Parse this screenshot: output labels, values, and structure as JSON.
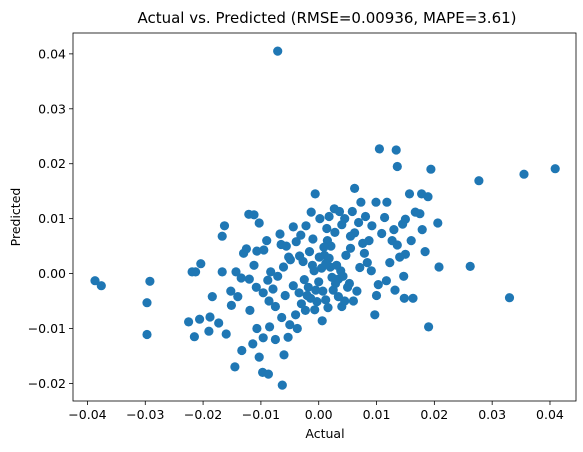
{
  "chart_data": {
    "type": "scatter",
    "title": "Actual vs. Predicted (RMSE=0.00936, MAPE=3.61)",
    "xlabel": "Actual",
    "ylabel": "Predicted",
    "xlim": [
      -0.0425,
      0.0445
    ],
    "ylim": [
      -0.0232,
      0.0438
    ],
    "xticks": [
      -0.04,
      -0.03,
      -0.02,
      -0.01,
      0.0,
      0.01,
      0.02,
      0.03,
      0.04
    ],
    "yticks": [
      -0.02,
      -0.01,
      0.0,
      0.01,
      0.02,
      0.03,
      0.04
    ],
    "xtick_labels": [
      "−0.04",
      "−0.03",
      "−0.02",
      "−0.01",
      "0.00",
      "0.01",
      "0.02",
      "0.03",
      "0.04"
    ],
    "ytick_labels": [
      "−0.02",
      "−0.01",
      "0.00",
      "0.01",
      "0.02",
      "0.03",
      "0.04"
    ],
    "grid": false,
    "marker_color": "#1f77b4",
    "points": [
      [
        -0.0071,
        0.0405
      ],
      [
        0.0409,
        0.0191
      ],
      [
        0.0355,
        0.0181
      ],
      [
        0.0277,
        0.0169
      ],
      [
        0.033,
        -0.0044
      ],
      [
        0.0262,
        0.0013
      ],
      [
        0.0194,
        0.019
      ],
      [
        0.0105,
        0.0227
      ],
      [
        0.0134,
        0.0225
      ],
      [
        0.0136,
        0.0195
      ],
      [
        0.019,
        -0.0097
      ],
      [
        0.0208,
        0.0012
      ],
      [
        0.0206,
        0.0092
      ],
      [
        0.0189,
        0.014
      ],
      [
        0.0178,
        0.0145
      ],
      [
        0.0157,
        0.0145
      ],
      [
        0.0175,
        0.0109
      ],
      [
        0.0167,
        0.0112
      ],
      [
        0.015,
        0.0099
      ],
      [
        0.0145,
        0.009
      ],
      [
        0.016,
        0.006
      ],
      [
        0.015,
        0.0035
      ],
      [
        0.0147,
        -0.0005
      ],
      [
        0.0132,
        -0.003
      ],
      [
        0.0148,
        -0.0045
      ],
      [
        0.0127,
        0.006
      ],
      [
        0.0123,
        0.002
      ],
      [
        0.0117,
        -0.0013
      ],
      [
        0.01,
        -0.004
      ],
      [
        0.0097,
        -0.0075
      ],
      [
        0.0062,
        0.0155
      ],
      [
        0.0073,
        0.013
      ],
      [
        0.0058,
        0.0113
      ],
      [
        0.0045,
        0.01
      ],
      [
        0.0036,
        0.0113
      ],
      [
        0.0028,
        0.0075
      ],
      [
        0.0015,
        0.006
      ],
      [
        0.001,
        0.0033
      ],
      [
        0.0005,
        0.001
      ],
      [
        0.0,
        -0.0015
      ],
      [
        -0.0005,
        -0.003
      ],
      [
        -0.0008,
        0.0005
      ],
      [
        0.002,
        0.0012
      ],
      [
        0.0034,
        -0.001
      ],
      [
        0.005,
        -0.0025
      ],
      [
        0.006,
        -0.005
      ],
      [
        0.004,
        -0.006
      ],
      [
        0.0025,
        -0.003
      ],
      [
        0.0012,
        -0.0048
      ],
      [
        -0.0014,
        -0.0045
      ],
      [
        -0.0023,
        -0.0067
      ],
      [
        0.0006,
        -0.0086
      ],
      [
        -0.0039,
        0.0058
      ],
      [
        -0.0033,
        0.0032
      ],
      [
        -0.0049,
        0.0025
      ],
      [
        -0.0056,
        0.005
      ],
      [
        -0.0067,
        0.0072
      ],
      [
        -0.009,
        0.006
      ],
      [
        -0.0107,
        0.0041
      ],
      [
        -0.0112,
        0.0015
      ],
      [
        -0.012,
        -0.001
      ],
      [
        -0.0108,
        -0.0025
      ],
      [
        -0.0096,
        -0.0035
      ],
      [
        -0.0086,
        -0.005
      ],
      [
        -0.0075,
        -0.006
      ],
      [
        -0.0064,
        -0.008
      ],
      [
        -0.005,
        -0.0093
      ],
      [
        -0.004,
        -0.0075
      ],
      [
        -0.003,
        -0.0055
      ],
      [
        -0.002,
        -0.004
      ],
      [
        -0.0103,
        -0.0152
      ],
      [
        -0.0097,
        -0.018
      ],
      [
        -0.0087,
        -0.0183
      ],
      [
        -0.0063,
        -0.0203
      ],
      [
        -0.0145,
        -0.017
      ],
      [
        -0.0133,
        -0.014
      ],
      [
        -0.0096,
        -0.0117
      ],
      [
        -0.0075,
        -0.012
      ],
      [
        -0.006,
        -0.0148
      ],
      [
        -0.0053,
        -0.0116
      ],
      [
        -0.0037,
        -0.01
      ],
      [
        -0.016,
        -0.011
      ],
      [
        -0.0173,
        -0.009
      ],
      [
        -0.0188,
        -0.0079
      ],
      [
        -0.0206,
        -0.0083
      ],
      [
        -0.0225,
        -0.0088
      ],
      [
        -0.0215,
        -0.0115
      ],
      [
        -0.019,
        -0.0105
      ],
      [
        -0.0184,
        -0.0042
      ],
      [
        -0.0167,
        0.0003
      ],
      [
        -0.0152,
        -0.0032
      ],
      [
        -0.0143,
        0.0003
      ],
      [
        -0.0134,
        -0.0008
      ],
      [
        -0.013,
        0.0037
      ],
      [
        -0.0125,
        0.0045
      ],
      [
        -0.0121,
        0.0108
      ],
      [
        -0.0112,
        0.0107
      ],
      [
        -0.0103,
        0.0092
      ],
      [
        -0.0095,
        0.0043
      ],
      [
        -0.0083,
        0.0003
      ],
      [
        -0.0167,
        0.0068
      ],
      [
        -0.0163,
        0.0087
      ],
      [
        -0.0204,
        0.0018
      ],
      [
        -0.0213,
        0.0003
      ],
      [
        -0.0219,
        0.0003
      ],
      [
        -0.0292,
        -0.0014
      ],
      [
        -0.0297,
        -0.0053
      ],
      [
        -0.0297,
        -0.0111
      ],
      [
        -0.0387,
        -0.0013
      ],
      [
        -0.0376,
        -0.0022
      ],
      [
        0.004,
        0.0089
      ],
      [
        0.0062,
        0.0074
      ],
      [
        0.0076,
        0.0055
      ],
      [
        0.0084,
        0.002
      ],
      [
        0.0091,
        0.0005
      ],
      [
        0.0103,
        -0.002
      ],
      [
        0.0109,
        0.0073
      ],
      [
        0.0114,
        0.0102
      ],
      [
        0.013,
        0.008
      ],
      [
        0.0136,
        0.0052
      ],
      [
        0.0092,
        0.0087
      ],
      [
        0.0081,
        0.0104
      ],
      [
        0.0069,
        0.0093
      ],
      [
        0.0055,
        0.0068
      ],
      [
        0.0047,
        0.0033
      ],
      [
        0.0038,
        0.0005
      ],
      [
        0.0029,
        -0.0018
      ],
      [
        0.0021,
        0.005
      ],
      [
        0.0014,
        0.0082
      ],
      [
        0.0002,
        0.01
      ],
      [
        -0.0006,
        0.0145
      ],
      [
        -0.0013,
        0.0112
      ],
      [
        -0.0022,
        0.0087
      ],
      [
        -0.0031,
        0.007
      ],
      [
        -0.0044,
        0.0085
      ],
      [
        -0.0052,
        0.003
      ],
      [
        -0.0061,
        0.0012
      ],
      [
        -0.0071,
        -0.0005
      ],
      [
        -0.0079,
        -0.0028
      ],
      [
        -0.0088,
        -0.0012
      ],
      [
        -0.0027,
        0.0022
      ],
      [
        -0.0016,
        0.004
      ],
      [
        -0.001,
        0.0063
      ],
      [
        0.0009,
        0.0048
      ],
      [
        0.0018,
        0.0028
      ],
      [
        0.0031,
        0.0015
      ],
      [
        0.0042,
        -0.0005
      ],
      [
        0.0053,
        -0.0018
      ],
      [
        0.0066,
        -0.0032
      ],
      [
        0.0071,
        0.0011
      ],
      [
        0.0079,
        0.0037
      ],
      [
        0.0087,
        0.006
      ],
      [
        -0.0044,
        -0.0022
      ],
      [
        -0.0034,
        -0.0035
      ],
      [
        -0.0025,
        -0.0011
      ],
      [
        -0.0011,
        0.0015
      ],
      [
        0.0001,
        0.003
      ],
      [
        0.0012,
        0.0018
      ],
      [
        0.0023,
        -0.0007
      ],
      [
        0.0034,
        -0.0042
      ],
      [
        0.0045,
        -0.005
      ],
      [
        0.0016,
        -0.0062
      ],
      [
        -0.0007,
        -0.0066
      ],
      [
        -0.0018,
        -0.0025
      ],
      [
        -0.0085,
        -0.0097
      ],
      [
        -0.0107,
        -0.01
      ],
      [
        -0.0119,
        -0.0067
      ],
      [
        -0.014,
        -0.0042
      ],
      [
        -0.0151,
        -0.0058
      ],
      [
        -0.0114,
        -0.0128
      ],
      [
        0.0018,
        0.0104
      ],
      [
        0.0027,
        0.0118
      ],
      [
        0.0055,
        0.0046
      ],
      [
        0.0099,
        0.013
      ],
      [
        0.0118,
        0.013
      ],
      [
        0.014,
        0.003
      ],
      [
        0.0163,
        -0.0045
      ],
      [
        0.0179,
        0.008
      ],
      [
        0.0184,
        0.004
      ],
      [
        -0.0065,
        0.0053
      ],
      [
        -0.0058,
        -0.004
      ],
      [
        -0.0003,
        -0.0051
      ],
      [
        0.0007,
        -0.0032
      ]
    ]
  }
}
